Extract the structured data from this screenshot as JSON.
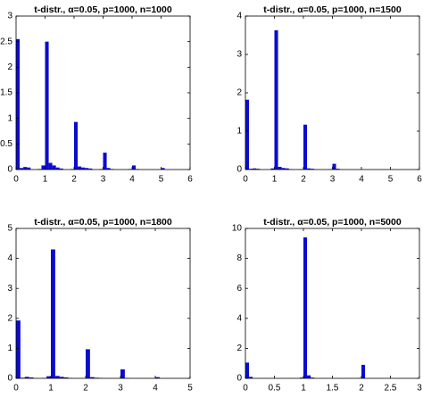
{
  "chart_data": [
    {
      "type": "histogram",
      "title": "t-distr., α=0.05, p=1000, n=1000",
      "color": "#0b0bcf",
      "bins": [
        0,
        0.125,
        0.25,
        0.375,
        0.5,
        0.625,
        0.75,
        0.875,
        1,
        1.125,
        1.25,
        1.375,
        1.5,
        1.625,
        1.75,
        1.875,
        2,
        2.125,
        2.25,
        2.375,
        2.5,
        2.625,
        2.75,
        2.875,
        3,
        3.125,
        3.25,
        3.375,
        3.5,
        3.625,
        3.75,
        3.875,
        4,
        4.125,
        4.25,
        4.375,
        4.5,
        4.625,
        4.75,
        4.875,
        5,
        5.125
      ],
      "values": [
        2.55,
        0.03,
        0.05,
        0.04,
        0,
        0,
        0.01,
        0.08,
        2.5,
        0.13,
        0.08,
        0.04,
        0.02,
        0,
        0,
        0.01,
        0.93,
        0.06,
        0.04,
        0.03,
        0.02,
        0,
        0,
        0.01,
        0.33,
        0.03,
        0.01,
        0,
        0,
        0,
        0,
        0.01,
        0.08,
        0.01,
        0,
        0,
        0,
        0,
        0,
        0,
        0.03
      ],
      "xlim": [
        0,
        6
      ],
      "xticks": [
        0,
        1,
        2,
        3,
        4,
        5,
        6
      ],
      "ylim": [
        0,
        3
      ],
      "yticks": [
        0,
        0.5,
        1,
        1.5,
        2,
        2.5,
        3
      ]
    },
    {
      "type": "histogram",
      "title": "t-distr., α=0.05, p=1000, n=1500",
      "color": "#0b0bcf",
      "bins": [
        0,
        0.125,
        0.25,
        0.375,
        0.5,
        0.625,
        0.75,
        0.875,
        1,
        1.125,
        1.25,
        1.375,
        1.5,
        1.625,
        1.75,
        1.875,
        2,
        2.125,
        2.25,
        2.375,
        2.5,
        2.625,
        2.75,
        2.875,
        3,
        3.125,
        3.25
      ],
      "values": [
        1.82,
        0.02,
        0.03,
        0.02,
        0,
        0,
        0,
        0.03,
        3.63,
        0.07,
        0.04,
        0.03,
        0.01,
        0,
        0,
        0.01,
        1.17,
        0.03,
        0.02,
        0,
        0,
        0,
        0,
        0.01,
        0.15,
        0.02
      ],
      "xlim": [
        0,
        6
      ],
      "xticks": [
        0,
        1,
        2,
        3,
        4,
        5,
        6
      ],
      "ylim": [
        0,
        4
      ],
      "yticks": [
        0,
        1,
        2,
        3,
        4
      ]
    },
    {
      "type": "histogram",
      "title": "t-distr., α=0.05, p=1000, n=1800",
      "color": "#0b0bcf",
      "bins": [
        0,
        0.125,
        0.25,
        0.375,
        0.5,
        0.625,
        0.75,
        0.875,
        1,
        1.125,
        1.25,
        1.375,
        1.5,
        1.625,
        1.75,
        1.875,
        2,
        2.125,
        2.25,
        2.375,
        2.5,
        2.625,
        2.75,
        2.875,
        3,
        3.125,
        3.25,
        3.375,
        3.5,
        3.625,
        3.75,
        3.875,
        4,
        4.125
      ],
      "values": [
        1.93,
        0.02,
        0.05,
        0.03,
        0,
        0,
        0.01,
        0.07,
        4.3,
        0.08,
        0.05,
        0.03,
        0.01,
        0,
        0,
        0,
        0.97,
        0.04,
        0.02,
        0.01,
        0,
        0,
        0,
        0,
        0.3,
        0.01,
        0,
        0,
        0,
        0,
        0,
        0,
        0.04
      ],
      "xlim": [
        0,
        5
      ],
      "xticks": [
        0,
        1,
        2,
        3,
        4,
        5
      ],
      "ylim": [
        0,
        5
      ],
      "yticks": [
        0,
        1,
        2,
        3,
        4,
        5
      ]
    },
    {
      "type": "histogram",
      "title": "t-distr., α=0.05, p=1000, n=5000",
      "color": "#0b0bcf",
      "bins": [
        0,
        0.0625,
        0.125,
        0.1875,
        0.25,
        0.3125,
        0.375,
        0.4375,
        0.5,
        0.5625,
        0.625,
        0.6875,
        0.75,
        0.8125,
        0.875,
        0.9375,
        1,
        1.0625,
        1.125,
        1.1875,
        1.25,
        1.3125,
        1.375,
        1.4375,
        1.5,
        1.5625,
        1.625,
        1.6875,
        1.75,
        1.8125,
        1.875,
        1.9375,
        2,
        2.0625
      ],
      "values": [
        1.05,
        0.1,
        0,
        0,
        0,
        0,
        0,
        0,
        0,
        0,
        0,
        0,
        0,
        0,
        0,
        0.05,
        9.4,
        0.2,
        0.05,
        0,
        0,
        0,
        0,
        0,
        0,
        0,
        0,
        0,
        0,
        0,
        0,
        0.02,
        0.9
      ],
      "xlim": [
        0,
        3
      ],
      "xticks": [
        0,
        0.5,
        1,
        1.5,
        2,
        2.5,
        3
      ],
      "ylim": [
        0,
        10
      ],
      "yticks": [
        0,
        2,
        4,
        6,
        8,
        10
      ]
    }
  ]
}
